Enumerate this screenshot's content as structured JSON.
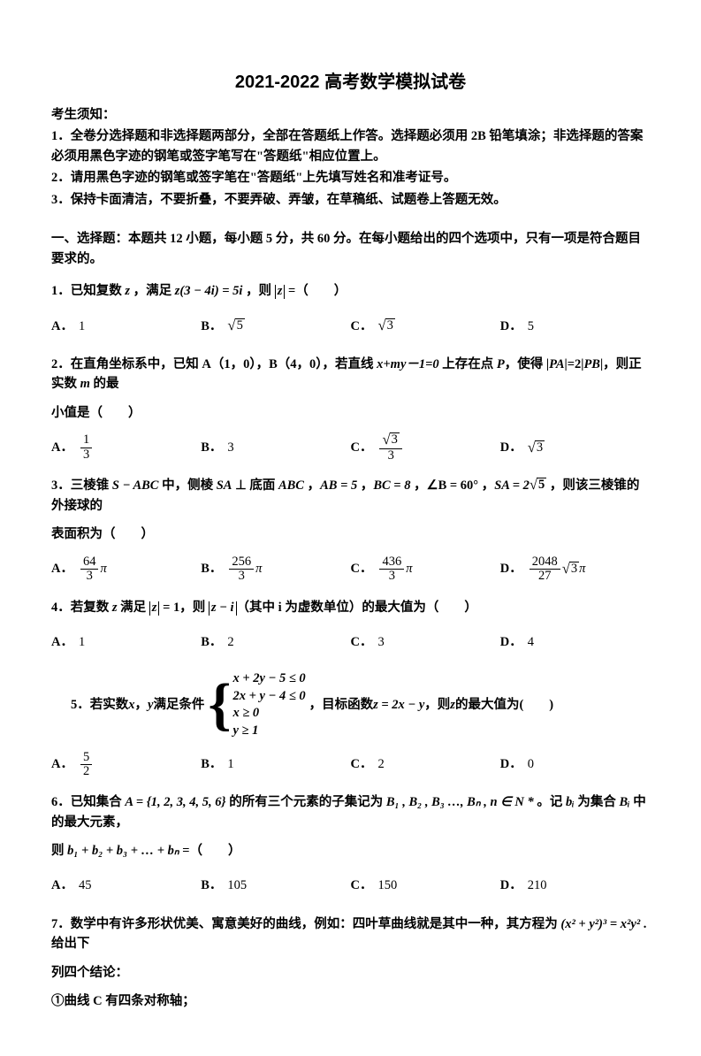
{
  "title": "2021-2022 高考数学模拟试卷",
  "instructions_head": "考生须知：",
  "instructions": [
    "1．全卷分选择题和非选择题两部分，全部在答题纸上作答。选择题必须用 2B 铅笔填涂；非选择题的答案必须用黑色字迹的钢笔或签字笔写在\"答题纸\"相应位置上。",
    "2．请用黑色字迹的钢笔或签字笔在\"答题纸\"上先填写姓名和准考证号。",
    "3．保持卡面清洁，不要折叠，不要弄破、弄皱，在草稿纸、试题卷上答题无效。"
  ],
  "section1": "一、选择题：本题共 12 小题，每小题 5 分，共 60 分。在每小题给出的四个选项中，只有一项是符合题目要求的。",
  "q1": {
    "pre": "1．已知复数 ",
    "mid1": "z",
    "mid2": " ，满足 ",
    "eq_l": "z(3 − 4i) = 5i",
    "mid3": " ，则 ",
    "abs": "z",
    "post": " =（　　）",
    "opts": {
      "A": "1",
      "B_sqrt": "5",
      "C_sqrt": "3",
      "D": "5"
    }
  },
  "q2": {
    "line1_a": "2．在直角坐标系中，已知 ",
    "A": "A（1，0）",
    "comma": "，",
    "B": "B（4，0）",
    "line1_b": "，若直线 ",
    "eqline": "x+my－1=0",
    "line1_c": " 上存在点 ",
    "P": "P",
    "line1_d": "，使得 |",
    "PA": "PA",
    "line1_e": "|=2|",
    "PB": "PB",
    "line1_f": "|，则正实数 ",
    "m": "m",
    "line1_g": " 的最",
    "line2": "小值是（　　）",
    "opts": {
      "A_num": "1",
      "A_den": "3",
      "B": "3",
      "C_num_sqrt": "3",
      "C_den": "3",
      "D_sqrt": "3"
    }
  },
  "q3": {
    "pre": "3．三棱锥 ",
    "sabc": "S − ABC",
    "t1": " 中，侧棱 ",
    "sa": "SA",
    "perp": " ⊥ 底面 ",
    "abc": "ABC",
    "t2": " ，",
    "ab": "AB = 5",
    "t3": " ，",
    "bc": "BC = 8",
    "t4": " ，",
    "angb": "∠B = 60°",
    "t5": " ，",
    "sa_eq": "SA = 2",
    "sa_sqrt": "5",
    "t6": " ，则该三棱锥的外接球的",
    "line2": "表面积为（　　）",
    "opts": {
      "A_num": "64",
      "A_den": "3",
      "B_num": "256",
      "B_den": "3",
      "C_num": "436",
      "C_den": "3",
      "D_num": "2048",
      "D_den": "27",
      "D_sqrt": "3"
    },
    "pi": "π"
  },
  "q4": {
    "pre": "4．若复数 ",
    "z": "z",
    "t1": " 满足 ",
    "abs1": "z",
    "eqone": " = 1",
    "t2": "，则 ",
    "abs2": "z − i",
    "t3": "（其中 i 为虚数单位）的最大值为（　　）",
    "opts": {
      "A": "1",
      "B": "2",
      "C": "3",
      "D": "4"
    }
  },
  "q5": {
    "pre": "5．若实数 ",
    "x": "x",
    "comma": "，",
    "y": "y",
    "t1": " 满足条件 ",
    "sys": [
      "x + 2y − 5 ≤ 0",
      "2x + y − 4 ≤ 0",
      "x ≥ 0",
      "y ≥ 1"
    ],
    "t2": " ，目标函数 ",
    "zexpr": "z = 2x − y",
    "t3": " ，则 ",
    "z": "z",
    "t4": " 的最大值为(　　)",
    "opts": {
      "A_num": "5",
      "A_den": "2",
      "B": "1",
      "C": "2",
      "D": "0"
    }
  },
  "q6": {
    "pre": "6．已知集合 ",
    "Aset": "A = {1, 2, 3, 4, 5, 6}",
    "t1": " 的所有三个元素的子集记为 ",
    "Blist": "B₁ , B₂ , B₃ …, Bₙ , n ∈ N *",
    "t2": " 。记 ",
    "bi": "bᵢ",
    "t3": " 为集合 ",
    "Bi": "Bᵢ",
    "t4": " 中的最大元素，",
    "line2a": "则 ",
    "sum": "b₁ + b₂ + b₃ + … + bₙ",
    "line2b": " =（　　）",
    "opts": {
      "A": "45",
      "B": "105",
      "C": "150",
      "D": "210"
    }
  },
  "q7": {
    "pre": "7．数学中有许多形状优美、寓意美好的曲线，例如：四叶草曲线就是其中一种，其方程为 ",
    "eq_l": "(x² + y²)³ = x²y²",
    "post": " .给出下",
    "line2": "列四个结论：",
    "c1": "①曲线 C 有四条对称轴；"
  }
}
